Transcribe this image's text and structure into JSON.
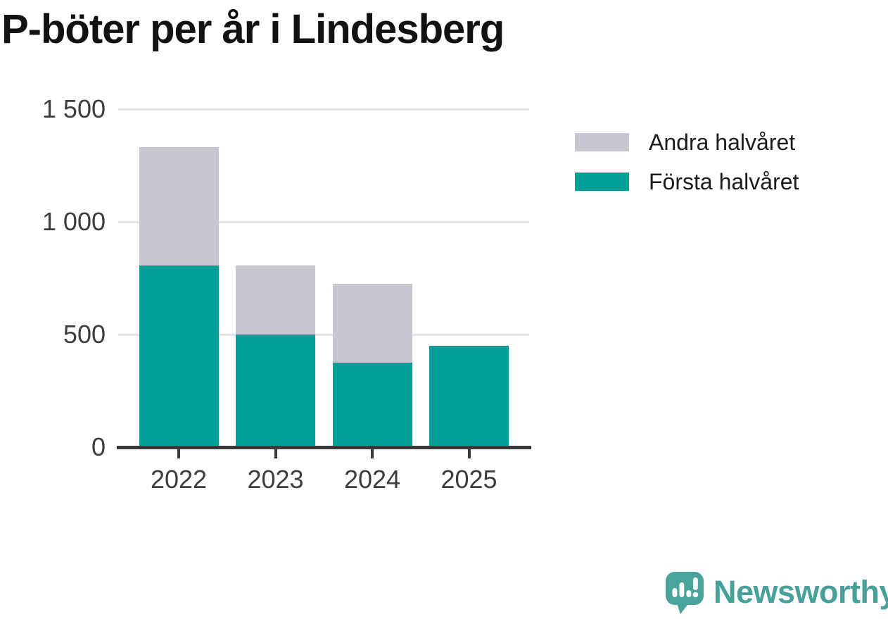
{
  "title": "P-böter per år i Lindesberg",
  "legend": {
    "items": [
      {
        "label": "Andra halvåret",
        "color": "#c9c6d2"
      },
      {
        "label": "Första halvåret",
        "color": "#00a099"
      }
    ]
  },
  "chart_data": {
    "type": "bar",
    "stacked": true,
    "title": "P-böter per år i Lindesberg",
    "categories": [
      "2022",
      "2023",
      "2024",
      "2025"
    ],
    "series": [
      {
        "name": "Första halvåret",
        "color": "#00a099",
        "values": [
          800,
          495,
          370,
          445
        ]
      },
      {
        "name": "Andra halvåret",
        "color": "#c9c6d2",
        "values": [
          525,
          305,
          350,
          0
        ]
      }
    ],
    "totals": [
      1325,
      800,
      720,
      445
    ],
    "xlabel": "",
    "ylabel": "",
    "ylim": [
      0,
      1500
    ],
    "yticks": [
      0,
      500,
      1000,
      1500
    ],
    "ytick_labels": [
      "0",
      "500",
      "1 000",
      "1 500"
    ],
    "grid": "horizontal",
    "legend_position": "right",
    "gridline_color": "#e3e3e3",
    "axis_color": "#3a3a3a"
  },
  "branding": {
    "logo_text": "Newsworthy",
    "logo_color": "#47a09a",
    "logo_icon": "speech-bubble-bar-chart-exclamation"
  }
}
